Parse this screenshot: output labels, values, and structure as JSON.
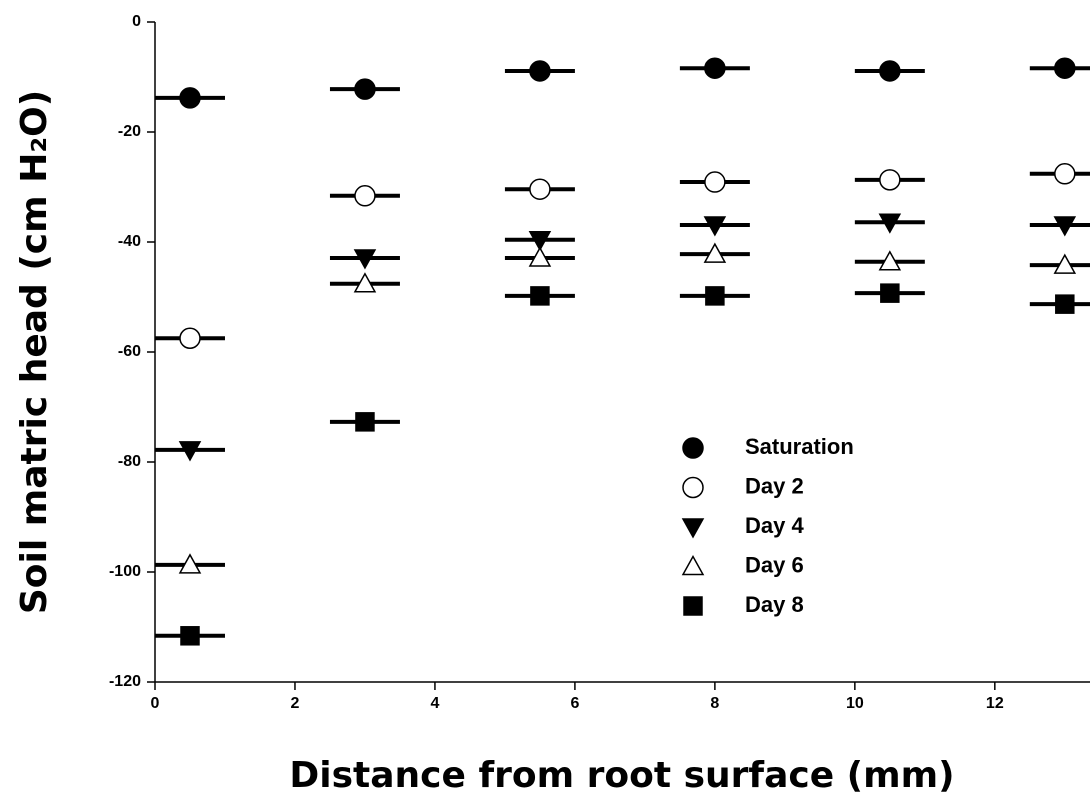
{
  "chart_data": {
    "type": "scatter",
    "x_label": "Distance from root surface (mm)",
    "y_label": "Soil matric head (cm H₂O)",
    "x": [
      0.5,
      3,
      5.5,
      8,
      10.5,
      13
    ],
    "xerr": [
      0.5,
      0.5,
      0.5,
      0.5,
      0.5,
      0.5
    ],
    "xlim": [
      0,
      13.36
    ],
    "ylim": [
      -120,
      0
    ],
    "xticks": [
      0,
      2,
      4,
      6,
      8,
      10,
      12
    ],
    "yticks": [
      -120,
      -100,
      -80,
      -60,
      -40,
      -20,
      0
    ],
    "legend": "center",
    "series": [
      {
        "name": "Saturation",
        "color": "#000000",
        "marker": "circle",
        "filled": true,
        "values": [
          -13.8,
          -12.2,
          -8.9,
          -8.4,
          -8.9,
          -8.4
        ]
      },
      {
        "name": "Day 2",
        "color": "#000000",
        "marker": "circle",
        "filled": false,
        "values": [
          -57.5,
          -31.6,
          -30.4,
          -29.1,
          -28.7,
          -27.6
        ]
      },
      {
        "name": "Day 4",
        "color": "#000000",
        "marker": "triangle-down",
        "filled": true,
        "values": [
          -77.8,
          -42.9,
          -39.6,
          -36.9,
          -36.4,
          -36.9
        ]
      },
      {
        "name": "Day 6",
        "color": "#000000",
        "marker": "triangle-up",
        "filled": false,
        "values": [
          -98.7,
          -47.6,
          -42.9,
          -42.2,
          -43.6,
          -44.2
        ]
      },
      {
        "name": "Day 8",
        "color": "#000000",
        "marker": "square",
        "filled": true,
        "values": [
          -111.6,
          -72.7,
          -49.8,
          -49.8,
          -49.3,
          -51.3
        ]
      }
    ]
  }
}
